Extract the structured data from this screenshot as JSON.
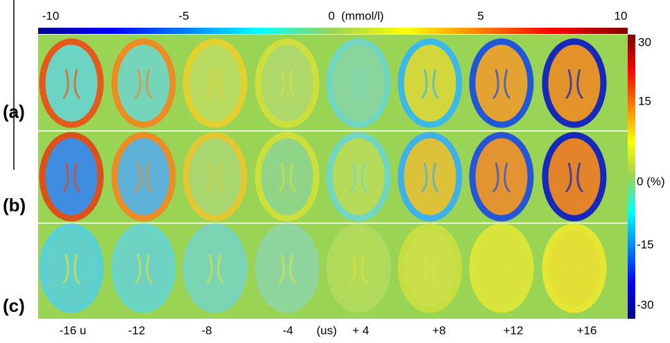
{
  "top_colorbar": {
    "ticks": [
      "-10",
      "-5",
      "0",
      "5",
      "10"
    ],
    "unit": "(mmol/l)"
  },
  "right_colorbar": {
    "ticks": [
      "30",
      "15",
      "0 (%)",
      "-15",
      "-30"
    ]
  },
  "rows": [
    "(a)",
    "(b)",
    "(c)"
  ],
  "columns": {
    "labels": [
      "-16 u",
      "-12",
      "-8",
      "-4",
      "+ 4",
      "+8",
      "+12",
      "+16"
    ],
    "unit": "(us)"
  }
}
